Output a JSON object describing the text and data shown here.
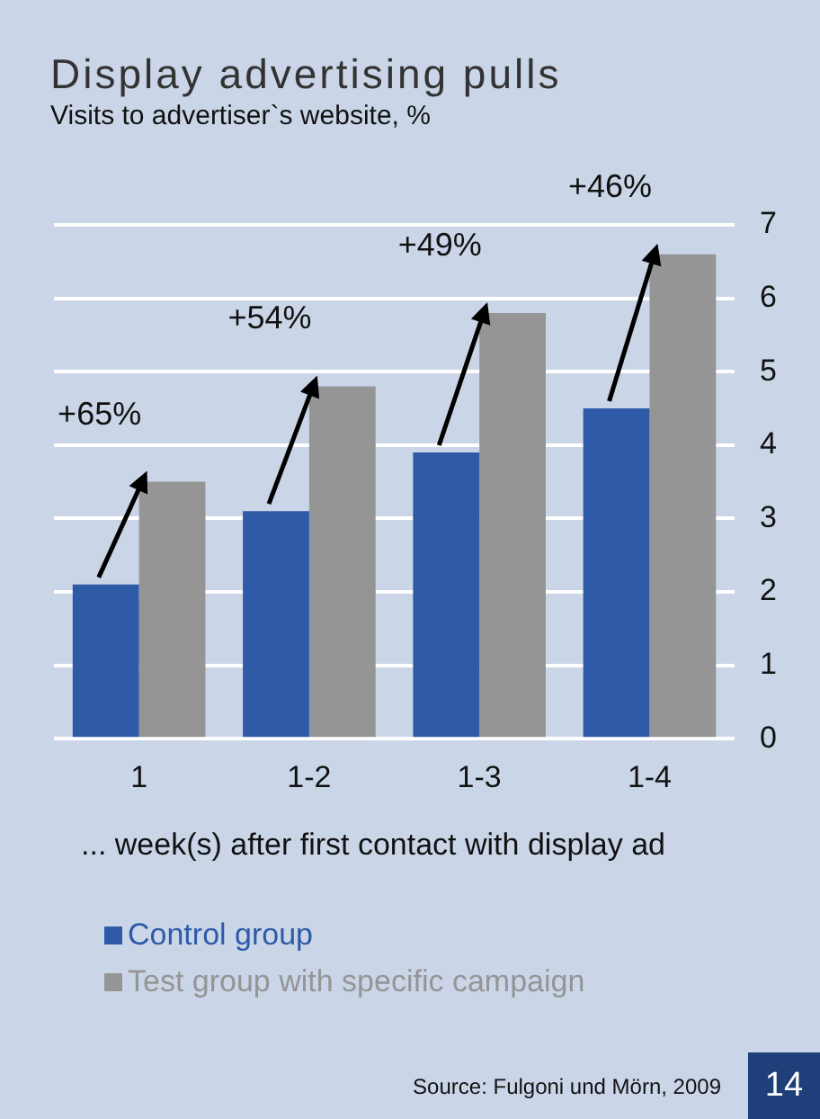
{
  "chart_data": {
    "type": "bar",
    "title": "Display advertising pulls",
    "subtitle": "Visits to advertiser`s website, %",
    "xlabel": "... week(s) after first contact with display ad",
    "categories": [
      "1",
      "1-2",
      "1-3",
      "1-4"
    ],
    "series": [
      {
        "name": "Control group",
        "color": "#2e5aa8",
        "values": [
          2.1,
          3.1,
          3.9,
          4.5
        ]
      },
      {
        "name": "Test group with specific campaign",
        "color": "#959595",
        "values": [
          3.5,
          4.8,
          5.8,
          6.6
        ]
      }
    ],
    "ylim": [
      0,
      7
    ],
    "yticks": [
      0,
      1,
      2,
      3,
      4,
      5,
      6,
      7
    ],
    "grid": "y",
    "legend": "bottom",
    "annotations": [
      {
        "text": "+65%",
        "x": "1",
        "y": 3.5
      },
      {
        "text": "+54%",
        "x": "1-2",
        "y": 4.8
      },
      {
        "text": "+49%",
        "x": "1-3",
        "y": 5.8
      },
      {
        "text": "+46%",
        "x": "1-4",
        "y": 6.6
      },
      "Source: Fulgoni und Mörn, 2009",
      "14"
    ]
  }
}
